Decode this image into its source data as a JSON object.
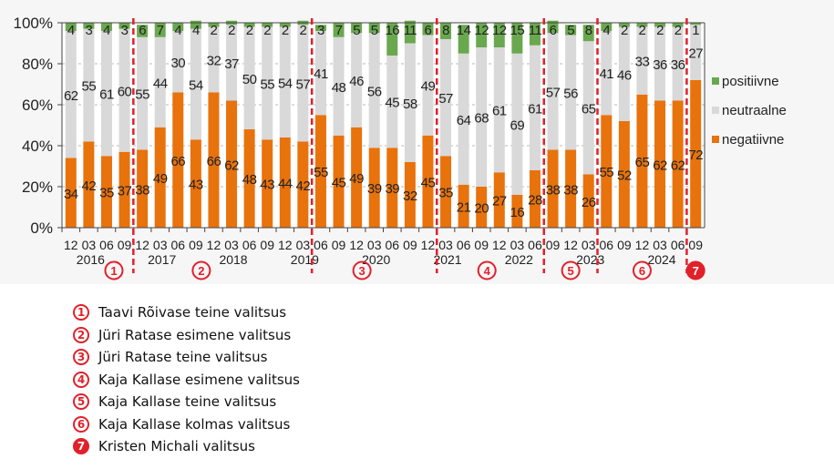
{
  "chart_data": {
    "type": "bar",
    "stacked": true,
    "ylim": [
      0,
      100
    ],
    "yticks": [
      "0%",
      "20%",
      "40%",
      "60%",
      "80%",
      "100%"
    ],
    "grid": true,
    "legend_position": "right",
    "x_month_labels": [
      "12",
      "03",
      "06",
      "09",
      "12",
      "03",
      "06",
      "09",
      "12",
      "03",
      "06",
      "09",
      "12",
      "03",
      "06",
      "09",
      "12",
      "03",
      "06",
      "09",
      "12",
      "03",
      "06",
      "09",
      "12",
      "03",
      "06",
      "09",
      "12",
      "03",
      "06",
      "09",
      "12",
      "03",
      "06",
      "09"
    ],
    "year_labels": [
      {
        "bar_index": 1,
        "label": "2016"
      },
      {
        "bar_index": 5,
        "label": "2017"
      },
      {
        "bar_index": 9,
        "label": "2018"
      },
      {
        "bar_index": 13,
        "label": "2019"
      },
      {
        "bar_index": 17,
        "label": "2020"
      },
      {
        "bar_index": 21,
        "label": "2021"
      },
      {
        "bar_index": 25,
        "label": "2022"
      },
      {
        "bar_index": 29,
        "label": "2023"
      },
      {
        "bar_index": 33,
        "label": "2024"
      }
    ],
    "series": [
      {
        "name": "negatiivne",
        "color": "#e8720c",
        "values": [
          34,
          42,
          35,
          37,
          38,
          49,
          66,
          43,
          66,
          62,
          48,
          43,
          44,
          42,
          55,
          45,
          49,
          39,
          39,
          32,
          45,
          35,
          21,
          20,
          27,
          16,
          28,
          38,
          38,
          26,
          55,
          52,
          65,
          62,
          62,
          72
        ]
      },
      {
        "name": "neutraalne",
        "color": "#d9d9d9",
        "values": [
          62,
          55,
          61,
          60,
          55,
          44,
          30,
          54,
          32,
          37,
          50,
          55,
          54,
          57,
          41,
          48,
          46,
          56,
          45,
          58,
          49,
          57,
          64,
          68,
          61,
          69,
          61,
          57,
          56,
          65,
          41,
          46,
          33,
          36,
          36,
          27
        ]
      },
      {
        "name": "positiivne",
        "color": "#6aa84f",
        "values": [
          4,
          3,
          4,
          3,
          6,
          7,
          4,
          4,
          2,
          2,
          2,
          2,
          2,
          2,
          3,
          7,
          5,
          5,
          16,
          11,
          6,
          8,
          14,
          12,
          12,
          15,
          11,
          6,
          5,
          8,
          4,
          2,
          2,
          2,
          2,
          1
        ]
      }
    ],
    "governments": [
      {
        "number": "1",
        "name": "Taavi Rõivase teine valitsus",
        "start_bar": 0,
        "end_bar": 3,
        "filled": false
      },
      {
        "number": "2",
        "name": "Jüri Ratase esimene valitsus",
        "start_bar": 4,
        "end_bar": 13,
        "filled": false
      },
      {
        "number": "3",
        "name": "Jüri Ratase teine valitsus",
        "start_bar": 14,
        "end_bar": 20,
        "filled": false
      },
      {
        "number": "4",
        "name": "Kaja Kallase esimene valitsus",
        "start_bar": 21,
        "end_bar": 26,
        "filled": false
      },
      {
        "number": "5",
        "name": "Kaja Kallase teine valitsus",
        "start_bar": 27,
        "end_bar": 29,
        "filled": false
      },
      {
        "number": "6",
        "name": "Kaja Kallase kolmas valitsus",
        "start_bar": 30,
        "end_bar": 34,
        "filled": false
      },
      {
        "number": "7",
        "name": "Kristen Michali valitsus",
        "start_bar": 35,
        "end_bar": 35,
        "filled": true
      }
    ],
    "divider_color": "#e2202a"
  }
}
